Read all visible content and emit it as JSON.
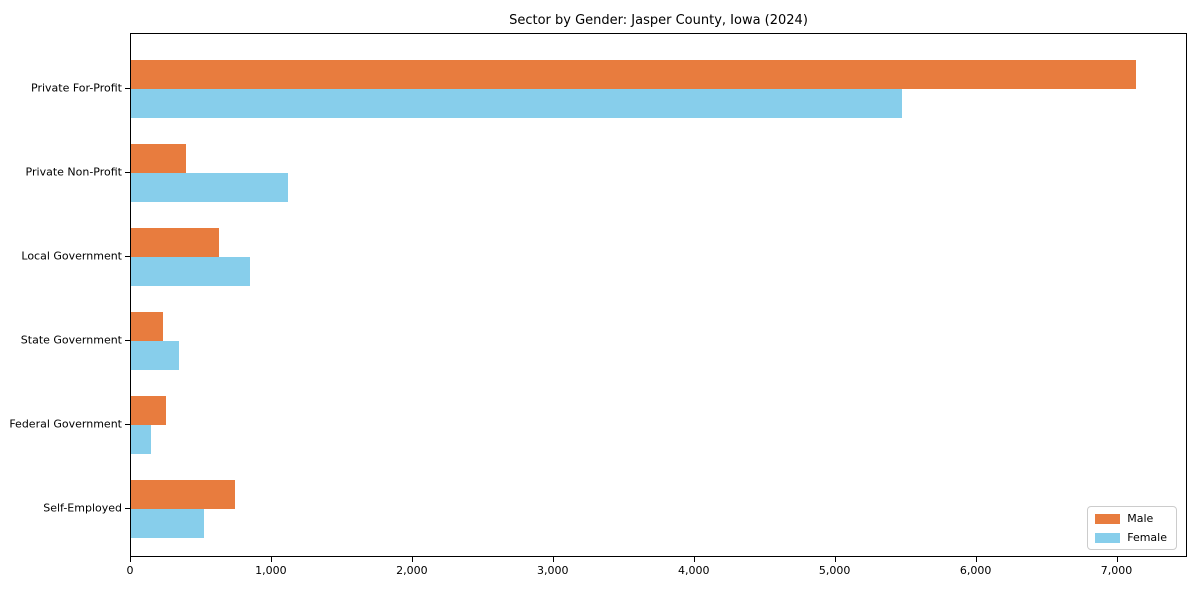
{
  "title": "Sector by Gender: Jasper County, Iowa (2024)",
  "chart_data": {
    "type": "bar",
    "orientation": "horizontal",
    "title": "Sector by Gender: Jasper County, Iowa (2024)",
    "xlabel": "",
    "ylabel": "",
    "categories": [
      "Private For-Profit",
      "Private Non-Profit",
      "Local Government",
      "State Government",
      "Federal Government",
      "Self-Employed"
    ],
    "series": [
      {
        "name": "Male",
        "color": "#E87C3E",
        "values": [
          7130,
          390,
          625,
          230,
          245,
          735
        ]
      },
      {
        "name": "Female",
        "color": "#87CEEB",
        "values": [
          5470,
          1115,
          845,
          340,
          145,
          515
        ]
      }
    ],
    "xlim": [
      0,
      7500
    ],
    "xticks": [
      0,
      1000,
      2000,
      3000,
      4000,
      5000,
      6000,
      7000
    ],
    "xtick_labels": [
      "0",
      "1,000",
      "2,000",
      "3,000",
      "4,000",
      "5,000",
      "6,000",
      "7,000"
    ],
    "grid": false,
    "legend_position": "lower right",
    "frame_color": "#000000",
    "background_color": "#ffffff"
  }
}
